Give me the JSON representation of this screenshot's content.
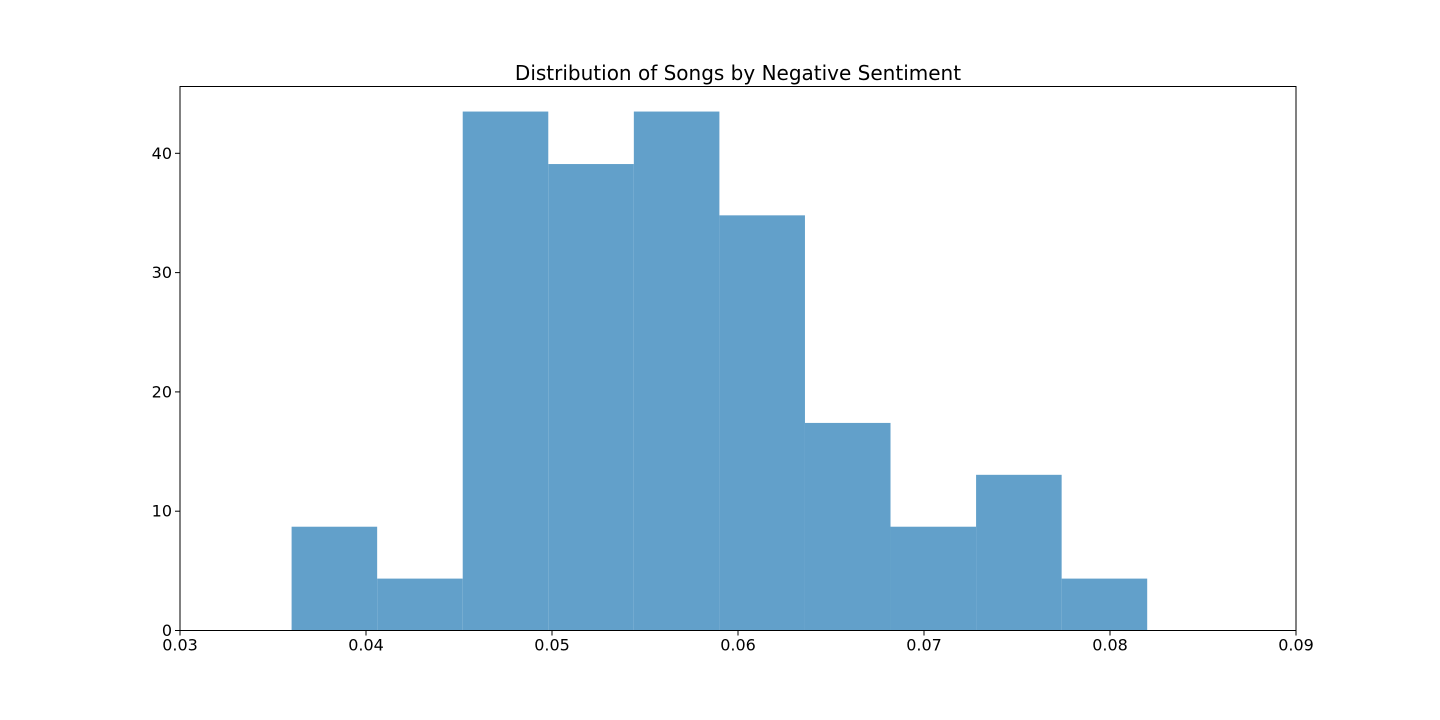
{
  "chart_data": {
    "type": "bar",
    "subtype": "histogram",
    "title": "Distribution of Songs by Negative Sentiment",
    "xlabel": "",
    "ylabel": "",
    "xlim": [
      0.03,
      0.09
    ],
    "ylim": [
      0,
      45.6
    ],
    "xticks": [
      0.03,
      0.04,
      0.05,
      0.06,
      0.07,
      0.08,
      0.09
    ],
    "xtick_labels": [
      "0.03",
      "0.04",
      "0.05",
      "0.06",
      "0.07",
      "0.08",
      "0.09"
    ],
    "yticks": [
      0,
      10,
      20,
      30,
      40
    ],
    "ytick_labels": [
      "0",
      "10",
      "20",
      "30",
      "40"
    ],
    "bin_edges": [
      0.036,
      0.0406,
      0.0452,
      0.0498,
      0.0544,
      0.059,
      0.0636,
      0.0682,
      0.0728,
      0.0774,
      0.082
    ],
    "values": [
      8.7,
      4.35,
      43.5,
      39.1,
      43.5,
      34.8,
      17.4,
      8.7,
      13.05,
      4.35
    ],
    "bar_color": "#62a0ca",
    "grid": false,
    "legend": "none"
  }
}
